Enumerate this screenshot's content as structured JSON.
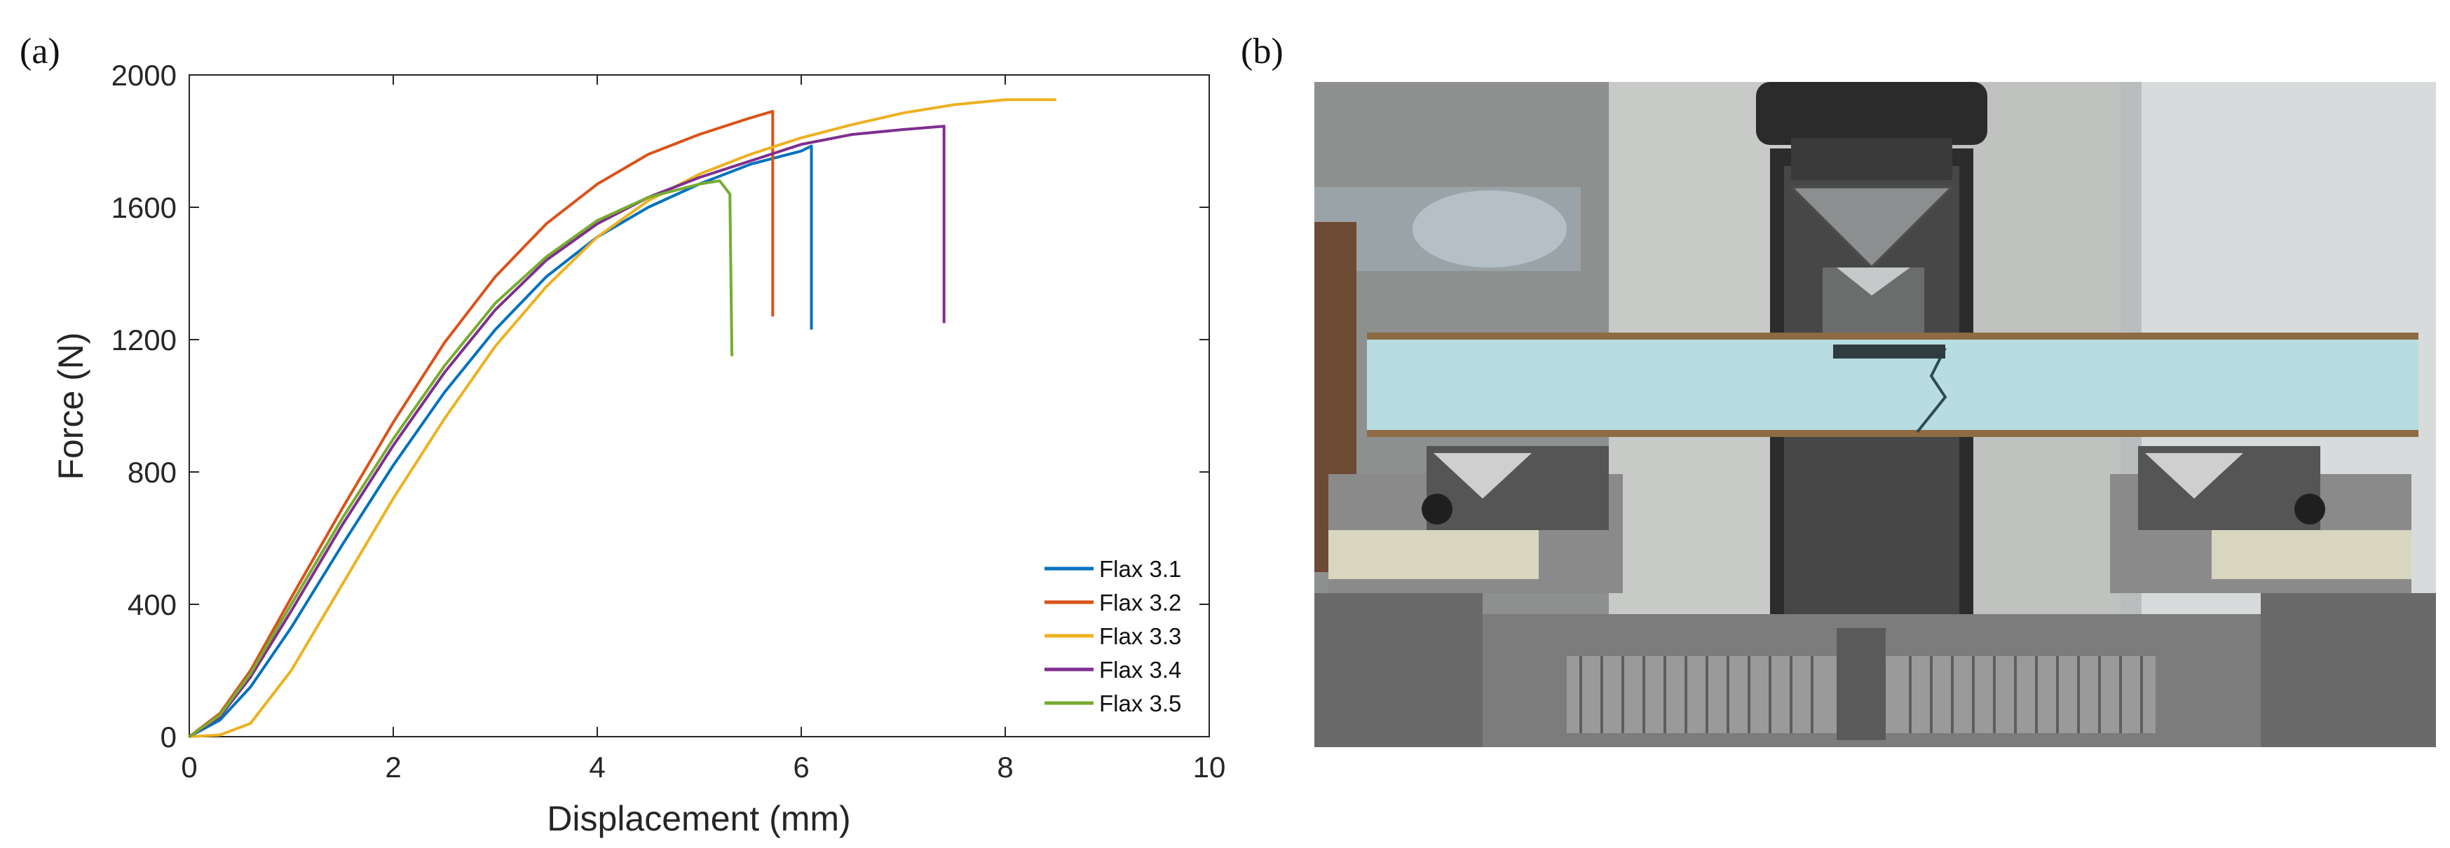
{
  "panel_labels": {
    "a": "(a)",
    "b": "(b)"
  },
  "chart_data": {
    "type": "line",
    "xlabel": "Displacement (mm)",
    "ylabel": "Force (N)",
    "xlim": [
      0,
      10
    ],
    "ylim": [
      0,
      2000
    ],
    "xticks": [
      0,
      2,
      4,
      6,
      8,
      10
    ],
    "yticks": [
      0,
      400,
      800,
      1200,
      1600,
      2000
    ],
    "grid": false,
    "legend_position": "bottom-right",
    "series": [
      {
        "name": "Flax 3.1",
        "color": "#0072BD",
        "points": [
          [
            0,
            0
          ],
          [
            0.3,
            50
          ],
          [
            0.6,
            150
          ],
          [
            1,
            330
          ],
          [
            1.5,
            580
          ],
          [
            2,
            820
          ],
          [
            2.5,
            1040
          ],
          [
            3,
            1230
          ],
          [
            3.5,
            1390
          ],
          [
            4,
            1510
          ],
          [
            4.5,
            1600
          ],
          [
            5,
            1670
          ],
          [
            5.5,
            1730
          ],
          [
            6,
            1770
          ],
          [
            6.1,
            1785
          ],
          [
            6.1,
            1230
          ]
        ]
      },
      {
        "name": "Flax 3.2",
        "color": "#D95319",
        "points": [
          [
            0,
            0
          ],
          [
            0.3,
            70
          ],
          [
            0.6,
            200
          ],
          [
            1,
            420
          ],
          [
            1.5,
            690
          ],
          [
            2,
            950
          ],
          [
            2.5,
            1190
          ],
          [
            3,
            1390
          ],
          [
            3.5,
            1550
          ],
          [
            4,
            1670
          ],
          [
            4.5,
            1760
          ],
          [
            5,
            1820
          ],
          [
            5.5,
            1870
          ],
          [
            5.72,
            1890
          ],
          [
            5.72,
            1270
          ]
        ]
      },
      {
        "name": "Flax 3.3",
        "color": "#EDB120",
        "points": [
          [
            0,
            0
          ],
          [
            0.3,
            5
          ],
          [
            0.6,
            40
          ],
          [
            1,
            200
          ],
          [
            1.5,
            460
          ],
          [
            2,
            720
          ],
          [
            2.5,
            960
          ],
          [
            3,
            1180
          ],
          [
            3.5,
            1360
          ],
          [
            4,
            1510
          ],
          [
            4.5,
            1620
          ],
          [
            5,
            1700
          ],
          [
            5.5,
            1760
          ],
          [
            6,
            1810
          ],
          [
            6.5,
            1850
          ],
          [
            7,
            1885
          ],
          [
            7.5,
            1910
          ],
          [
            8,
            1925
          ],
          [
            8.5,
            1925
          ]
        ]
      },
      {
        "name": "Flax 3.4",
        "color": "#7E2F8E",
        "points": [
          [
            0,
            0
          ],
          [
            0.3,
            60
          ],
          [
            0.6,
            180
          ],
          [
            1,
            380
          ],
          [
            1.5,
            640
          ],
          [
            2,
            880
          ],
          [
            2.5,
            1100
          ],
          [
            3,
            1290
          ],
          [
            3.5,
            1440
          ],
          [
            4,
            1550
          ],
          [
            4.5,
            1630
          ],
          [
            5,
            1690
          ],
          [
            5.5,
            1740
          ],
          [
            6,
            1790
          ],
          [
            6.5,
            1820
          ],
          [
            7,
            1835
          ],
          [
            7.4,
            1845
          ],
          [
            7.4,
            1250
          ]
        ]
      },
      {
        "name": "Flax 3.5",
        "color": "#77AC30",
        "points": [
          [
            0,
            0
          ],
          [
            0.3,
            65
          ],
          [
            0.6,
            190
          ],
          [
            1,
            400
          ],
          [
            1.5,
            660
          ],
          [
            2,
            900
          ],
          [
            2.5,
            1120
          ],
          [
            3,
            1310
          ],
          [
            3.5,
            1450
          ],
          [
            4,
            1560
          ],
          [
            4.5,
            1630
          ],
          [
            5,
            1670
          ],
          [
            5.2,
            1680
          ],
          [
            5.3,
            1640
          ],
          [
            5.32,
            1150
          ]
        ]
      }
    ]
  },
  "photo": {
    "description_icon": "three-point-bending-test-photo"
  }
}
